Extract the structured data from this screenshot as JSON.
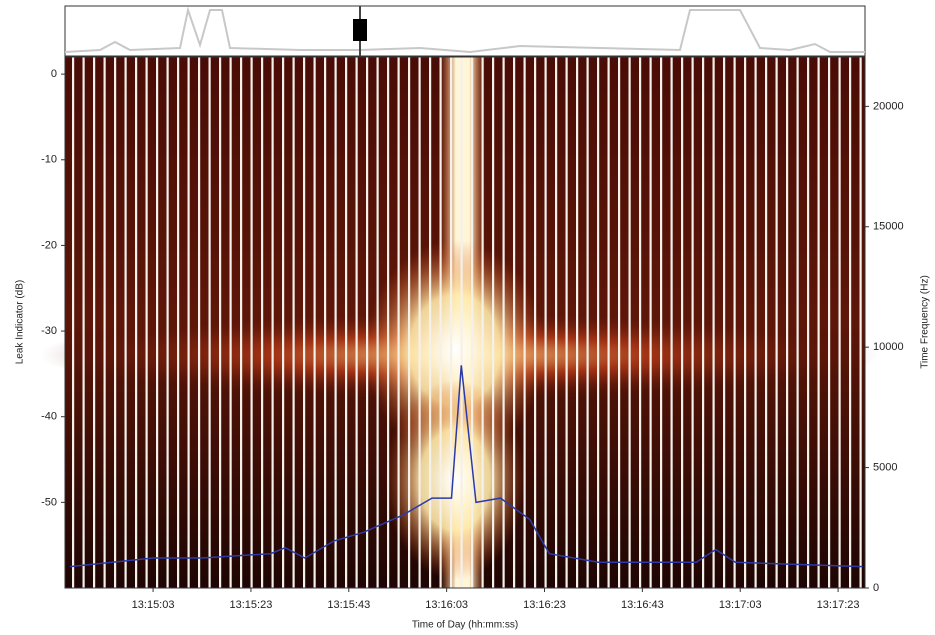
{
  "chart_data": {
    "type": "line",
    "y_label": "Leak Indicator (dB)",
    "y2_label": "Time Frequency (Hz)",
    "x_label": "Time of Day (hh:mm:ss)",
    "x": [
      47686,
      47703,
      47713,
      47727,
      47730,
      47734,
      47740,
      47746,
      47754,
      47760,
      47764,
      47766,
      47769,
      47774,
      47780,
      47784,
      47794,
      47814,
      47818,
      47822,
      47848
    ],
    "values": [
      -57.5,
      -56.5,
      -56.5,
      -56,
      -55.3,
      -56.5,
      -54.5,
      -53.5,
      -51.5,
      -49.5,
      -49.5,
      -34,
      -50,
      -49.5,
      -52,
      -56,
      -57,
      -57,
      -55.5,
      -57,
      -57.5
    ],
    "color": "#2b3aa8",
    "xlim": [
      47685,
      47848.5
    ],
    "xticks": [
      {
        "value": 47703,
        "label": "13:15:03"
      },
      {
        "value": 47723,
        "label": "13:15:23"
      },
      {
        "value": 47743,
        "label": "13:15:43"
      },
      {
        "value": 47763,
        "label": "13:16:03"
      },
      {
        "value": 47783,
        "label": "13:16:23"
      },
      {
        "value": 47803,
        "label": "13:16:43"
      },
      {
        "value": 47823,
        "label": "13:17:03"
      },
      {
        "value": 47843,
        "label": "13:17:23"
      }
    ],
    "ylim": [
      -60,
      2
    ],
    "yticks": [
      0,
      -10,
      -20,
      -30,
      -40,
      -50
    ],
    "y2lim": [
      0,
      22050
    ],
    "y2ticks": [
      0,
      5000,
      10000,
      15000,
      20000
    ]
  }
}
